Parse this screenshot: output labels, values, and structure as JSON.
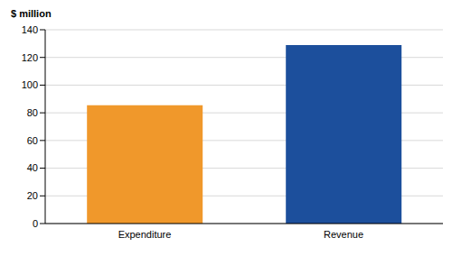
{
  "chart_data": {
    "type": "bar",
    "ylabel": "$ million",
    "categories": [
      "Expenditure",
      "Revenue"
    ],
    "values": [
      85.5,
      129
    ],
    "colors": [
      "#f0982b",
      "#1c4f9c"
    ],
    "ylim": [
      0,
      140
    ],
    "yticks": [
      0,
      20,
      40,
      60,
      80,
      100,
      120,
      140
    ],
    "grid": true
  }
}
